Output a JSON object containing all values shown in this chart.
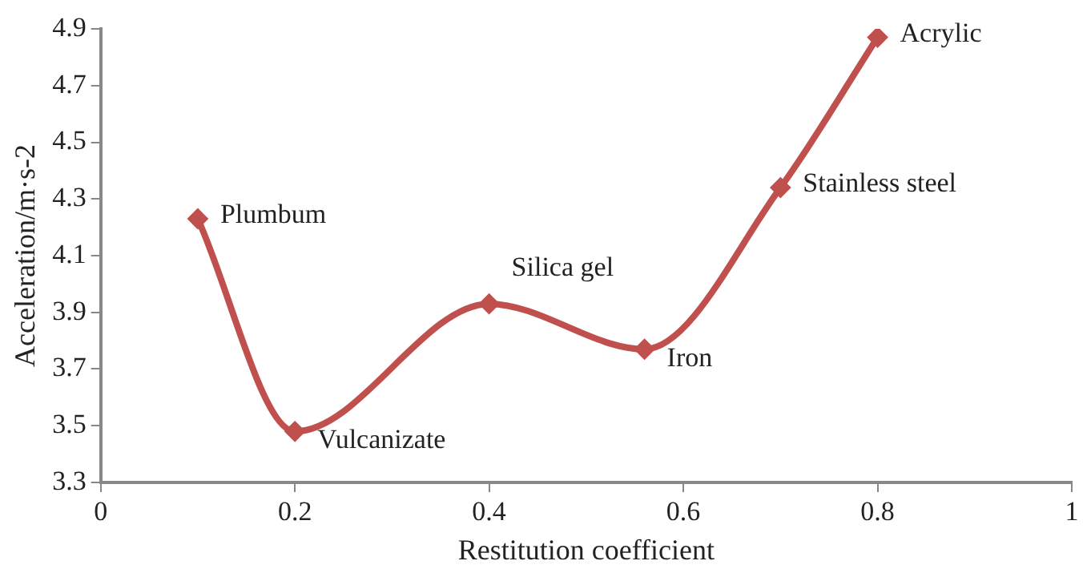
{
  "chart_data": {
    "type": "line",
    "xlabel": "Restitution coefficient",
    "ylabel": "Acceleration/m·s-2",
    "x": [
      0.1,
      0.2,
      0.4,
      0.56,
      0.7,
      0.8
    ],
    "series": [
      {
        "color": "#c0504d",
        "values": [
          4.23,
          3.48,
          3.93,
          3.77,
          4.34,
          4.87
        ]
      }
    ],
    "xlim": [
      0,
      1
    ],
    "xticks": [
      0,
      0.2,
      0.4,
      0.6,
      0.8,
      1
    ],
    "ylim": [
      3.3,
      4.9
    ],
    "yticks": [
      3.3,
      3.5,
      3.7,
      3.9,
      4.1,
      4.3,
      4.5,
      4.7,
      4.9
    ],
    "grid": false,
    "legend": false,
    "marker": "diamond",
    "line_style": "solid",
    "annotations": [
      {
        "text": "Plumbum",
        "x": 0.1,
        "y": 4.23
      },
      {
        "text": "Vulcanizate",
        "x": 0.2,
        "y": 3.48
      },
      {
        "text": "Silica gel",
        "x": 0.4,
        "y": 3.93
      },
      {
        "text": "Iron",
        "x": 0.56,
        "y": 3.77
      },
      {
        "text": "Stainless steel",
        "x": 0.7,
        "y": 4.34
      },
      {
        "text": "Acrylic",
        "x": 0.8,
        "y": 4.87
      }
    ]
  }
}
